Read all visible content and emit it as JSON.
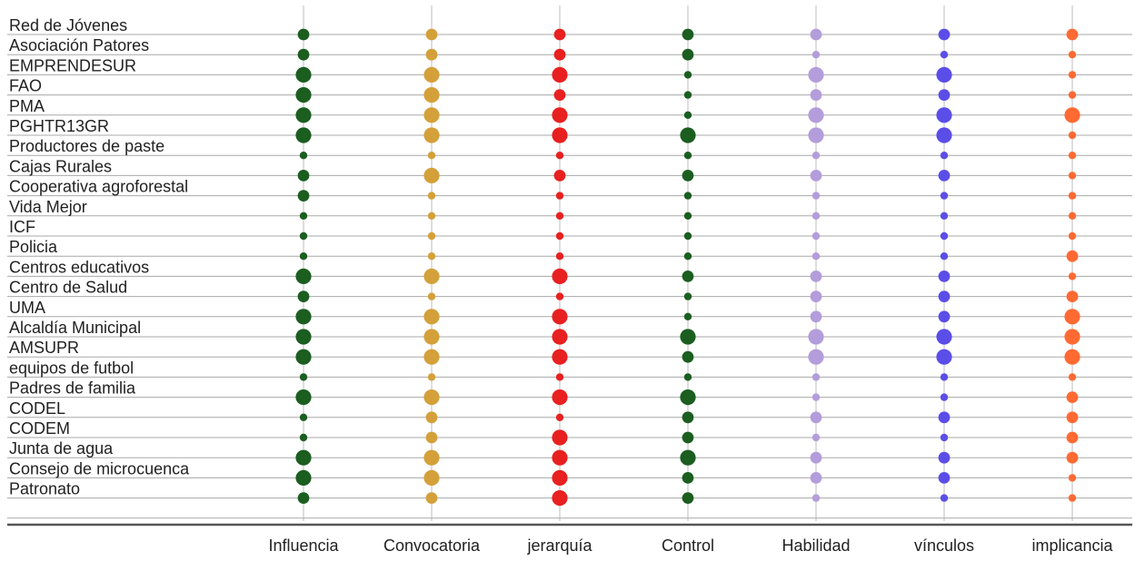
{
  "chart_data": {
    "type": "scatter",
    "subtype": "dot-matrix",
    "title": "",
    "xlabel": "",
    "ylabel": "",
    "grid": true,
    "legend": "none",
    "rows": [
      "Red de Jóvenes",
      "Asociación Patores",
      "EMPRENDESUR",
      "FAO",
      "PMA",
      "PGHTR13GR",
      "Productores de paste",
      "Cajas Rurales",
      "Cooperativa agroforestal",
      "Vida Mejor",
      "ICF",
      "Policia",
      "Centros educativos",
      "Centro de Salud",
      "UMA",
      "Alcaldía Municipal",
      "AMSUPR",
      "equipos de futbol",
      "Padres de familia",
      "CODEL",
      "CODEM",
      "Junta de agua",
      "Consejo de microcuenca",
      "Patronato"
    ],
    "columns": [
      "Influencia",
      "Convocatoria",
      "jerarquía",
      "Control",
      "Habilidad",
      "vínculos",
      "implicancia"
    ],
    "colors": [
      "#1b5e20",
      "#d4a03a",
      "#e82020",
      "#1b5e20",
      "#b39ddb",
      "#5b4ee8",
      "#ff6a33"
    ],
    "scale": [
      1,
      3
    ],
    "values": [
      [
        2,
        2,
        2,
        2,
        2,
        2,
        2
      ],
      [
        2,
        2,
        2,
        2,
        1,
        1,
        1
      ],
      [
        3,
        3,
        3,
        1,
        3,
        3,
        1
      ],
      [
        3,
        3,
        2,
        1,
        2,
        2,
        1
      ],
      [
        3,
        3,
        3,
        1,
        3,
        3,
        3
      ],
      [
        3,
        3,
        3,
        3,
        3,
        3,
        1
      ],
      [
        1,
        1,
        1,
        1,
        1,
        1,
        1
      ],
      [
        2,
        3,
        2,
        2,
        2,
        2,
        1
      ],
      [
        2,
        1,
        1,
        1,
        1,
        1,
        1
      ],
      [
        1,
        1,
        1,
        1,
        1,
        1,
        1
      ],
      [
        1,
        1,
        1,
        1,
        1,
        1,
        1
      ],
      [
        1,
        1,
        1,
        1,
        1,
        1,
        2
      ],
      [
        3,
        3,
        3,
        2,
        2,
        2,
        1
      ],
      [
        2,
        1,
        1,
        1,
        2,
        2,
        2
      ],
      [
        3,
        3,
        3,
        1,
        2,
        2,
        3
      ],
      [
        3,
        3,
        3,
        3,
        3,
        3,
        3
      ],
      [
        3,
        3,
        3,
        2,
        3,
        3,
        3
      ],
      [
        1,
        1,
        1,
        1,
        1,
        1,
        1
      ],
      [
        3,
        3,
        3,
        3,
        1,
        1,
        2
      ],
      [
        1,
        2,
        1,
        2,
        2,
        2,
        2
      ],
      [
        1,
        2,
        3,
        2,
        1,
        1,
        2
      ],
      [
        3,
        3,
        3,
        3,
        2,
        2,
        2
      ],
      [
        3,
        3,
        3,
        2,
        2,
        2,
        1
      ],
      [
        2,
        2,
        3,
        2,
        1,
        1,
        1
      ]
    ]
  }
}
